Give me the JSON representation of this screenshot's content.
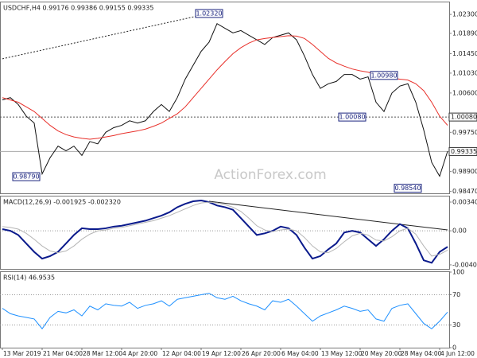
{
  "chart_data": [
    {
      "type": "line",
      "title": "USDCHF,H4 0.99176 0.99386 0.99155 0.99335",
      "ylim": [
        0.9843,
        1.0256
      ],
      "yticks": [
        {
          "value": 1.023,
          "label": "1.02300"
        },
        {
          "value": 1.0189,
          "label": "1.01890"
        },
        {
          "value": 1.0145,
          "label": "1.01450"
        },
        {
          "value": 1.0103,
          "label": "1.01030"
        },
        {
          "value": 1.006,
          "label": "1.00600"
        },
        {
          "value": 0.9975,
          "label": "0.99750"
        },
        {
          "value": 0.989,
          "label": "0.98900"
        },
        {
          "value": 0.9847,
          "label": "0.98470"
        }
      ],
      "series": [
        {
          "name": "Close",
          "color": "#111111",
          "values": [
            1.0045,
            1.005,
            1.0035,
            1.001,
            0.9995,
            0.9885,
            0.992,
            0.9945,
            0.9935,
            0.9945,
            0.9925,
            0.9955,
            0.995,
            0.9975,
            0.9985,
            0.999,
            1.0,
            0.9995,
            1.0,
            1.002,
            1.0035,
            1.002,
            1.005,
            1.009,
            1.012,
            1.015,
            1.017,
            1.021,
            1.02,
            1.019,
            1.0195,
            1.0185,
            1.0175,
            1.0165,
            1.018,
            1.0185,
            1.019,
            1.0175,
            1.014,
            1.01,
            1.007,
            1.008,
            1.0085,
            1.01,
            1.01,
            1.009,
            1.0095,
            1.004,
            1.002,
            1.006,
            1.0075,
            1.008,
            1.004,
            0.998,
            0.991,
            0.988,
            0.9934
          ]
        },
        {
          "name": "MA",
          "color": "#e8302a",
          "values": [
            1.005,
            1.0045,
            1.004,
            1.003,
            1.002,
            1.0005,
            0.999,
            0.9978,
            0.997,
            0.9965,
            0.9962,
            0.996,
            0.9962,
            0.9965,
            0.9968,
            0.9972,
            0.9975,
            0.9978,
            0.9982,
            0.9988,
            0.9995,
            1.0005,
            1.0015,
            1.003,
            1.005,
            1.007,
            1.009,
            1.011,
            1.0128,
            1.0145,
            1.0158,
            1.0168,
            1.0175,
            1.0178,
            1.018,
            1.0182,
            1.0184,
            1.0183,
            1.0178,
            1.0165,
            1.015,
            1.0135,
            1.0125,
            1.0118,
            1.0112,
            1.0108,
            1.0105,
            1.01,
            1.0095,
            1.0092,
            1.009,
            1.0088,
            1.008,
            1.0065,
            1.004,
            1.001,
            0.999
          ]
        }
      ],
      "hline": {
        "value": 1.0008,
        "label": "1.00080"
      },
      "last": {
        "value": 0.99335,
        "label": "0.99335"
      },
      "trendline": {
        "x": [
          0,
          26
        ],
        "y": [
          1.0134,
          1.0232
        ]
      },
      "annotations": [
        {
          "value": 1.0232,
          "label": "1.02320",
          "x": 26
        },
        {
          "value": 1.0098,
          "label": "1.00980",
          "x": 48
        },
        {
          "value": 1.0008,
          "label": "1.00080",
          "x": 44
        },
        {
          "value": 0.9879,
          "label": "0.98790",
          "x": 3
        },
        {
          "value": 0.9854,
          "label": "0.98540",
          "x": 51
        }
      ],
      "watermark": "ActionForex.com"
    },
    {
      "type": "line",
      "title": "MACD(12,26,9) -0.001925 -0.002320",
      "ylim": [
        -0.00452,
        0.00407
      ],
      "yticks": [
        0.003409,
        {
          "value": 0,
          "label": "0.00"
        },
        -0.004043
      ],
      "zero_line": 0,
      "series": [
        {
          "name": "MACD",
          "color": "#0a1a8c",
          "values": [
            0.0002,
            0.0,
            -0.0005,
            -0.0015,
            -0.0025,
            -0.0033,
            -0.003,
            -0.0025,
            -0.0015,
            -0.0005,
            0.0003,
            0.0002,
            0.0002,
            0.0003,
            0.0005,
            0.0006,
            0.0008,
            0.001,
            0.0012,
            0.0015,
            0.0018,
            0.0022,
            0.0028,
            0.0032,
            0.0035,
            0.0036,
            0.0034,
            0.003,
            0.0028,
            0.0025,
            0.0015,
            0.0005,
            -0.0005,
            -0.0003,
            0.0,
            0.0005,
            0.0003,
            -0.0005,
            -0.002,
            -0.0033,
            -0.003,
            -0.0022,
            -0.0015,
            -0.0002,
            0.0,
            -0.0002,
            -0.001,
            -0.0018,
            -0.001,
            0.0,
            0.0008,
            0.0003,
            -0.0015,
            -0.0035,
            -0.0038,
            -0.0025,
            -0.0019
          ]
        },
        {
          "name": "Signal",
          "color": "#b5b5b5",
          "values": [
            0.0005,
            0.0004,
            0.0002,
            -0.0003,
            -0.001,
            -0.0018,
            -0.0024,
            -0.0026,
            -0.0024,
            -0.0018,
            -0.001,
            -0.0004,
            0.0,
            0.0001,
            0.0003,
            0.0004,
            0.0006,
            0.0008,
            0.001,
            0.0012,
            0.0015,
            0.0018,
            0.0022,
            0.0026,
            0.003,
            0.0033,
            0.0034,
            0.0033,
            0.0031,
            0.0028,
            0.0023,
            0.0015,
            0.0006,
            0.0001,
            -0.0001,
            0.0001,
            0.0002,
            0.0,
            -0.0008,
            -0.0018,
            -0.0025,
            -0.0026,
            -0.0021,
            -0.0013,
            -0.0006,
            -0.0003,
            -0.0005,
            -0.0011,
            -0.0012,
            -0.0007,
            0.0,
            0.0003,
            -0.0004,
            -0.0018,
            -0.003,
            -0.0028,
            -0.0023
          ]
        }
      ],
      "trendline": {
        "x": [
          26,
          56
        ],
        "y": [
          0.0035,
          0.0001
        ]
      }
    },
    {
      "type": "line",
      "title": "RSI(14) 46.9535",
      "ylim": [
        0,
        100
      ],
      "yticks": [
        100,
        70,
        30,
        0
      ],
      "levels": [
        70,
        30
      ],
      "series": [
        {
          "name": "RSI",
          "color": "#1e90ff",
          "values": [
            52,
            45,
            42,
            40,
            38,
            25,
            40,
            48,
            46,
            50,
            42,
            55,
            50,
            58,
            56,
            55,
            60,
            52,
            56,
            58,
            62,
            55,
            64,
            66,
            68,
            70,
            72,
            66,
            64,
            68,
            62,
            58,
            55,
            50,
            62,
            60,
            64,
            55,
            45,
            35,
            42,
            46,
            50,
            55,
            52,
            48,
            50,
            38,
            35,
            52,
            56,
            58,
            45,
            32,
            25,
            35,
            47
          ]
        }
      ],
      "xticks": [
        {
          "value": 0,
          "label": "13 Mar 2019"
        },
        {
          "value": 5,
          "label": "21 Mar 04:00"
        },
        {
          "value": 10,
          "label": "28 Mar 12:00"
        },
        {
          "value": 15,
          "label": "4 Apr 20:00"
        },
        {
          "value": 20,
          "label": "12 Apr 04:00"
        },
        {
          "value": 25,
          "label": "19 Apr 12:00"
        },
        {
          "value": 30,
          "label": "26 Apr 20:00"
        },
        {
          "value": 35,
          "label": "6 May 04:00"
        },
        {
          "value": 40,
          "label": "13 May 12:00"
        },
        {
          "value": 45,
          "label": "20 May 20:00"
        },
        {
          "value": 50,
          "label": "28 May 04:00"
        },
        {
          "value": 55,
          "label": "4 Jun 12:00"
        }
      ]
    }
  ]
}
